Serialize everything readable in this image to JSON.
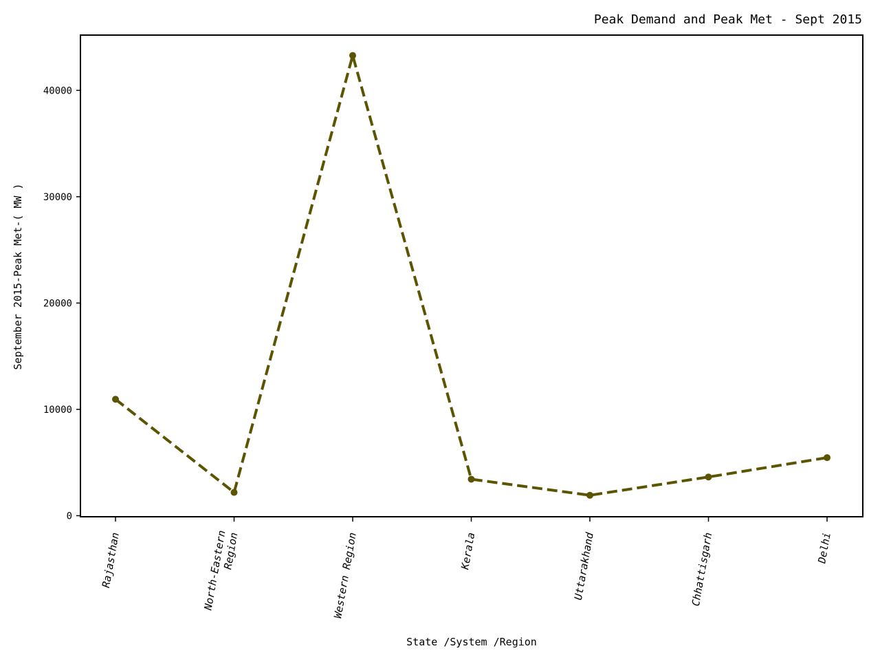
{
  "chart_data": {
    "type": "line",
    "title": "Peak Demand and Peak Met - Sept 2015",
    "xlabel": "State /System /Region",
    "ylabel": "September 2015-Peak Met-( MW )",
    "categories": [
      "Rajasthan",
      "North-Eastern\nRegion",
      "Western Region",
      "Kerala",
      "Uttarakhand",
      "Chhattisgarh",
      "Delhi"
    ],
    "series": [
      {
        "values": [
          10950,
          2190,
          43280,
          3430,
          1920,
          3640,
          5460
        ]
      }
    ],
    "ylim": [
      -100,
      45200
    ],
    "yticks": [
      0,
      10000,
      20000,
      30000,
      40000
    ],
    "ytick_labels": [
      "0",
      "10000",
      "20000",
      "30000",
      "40000"
    ],
    "line_style": "dashed",
    "marker": "circle",
    "line_color": "#5b5400",
    "grid": false,
    "legend": "none"
  }
}
